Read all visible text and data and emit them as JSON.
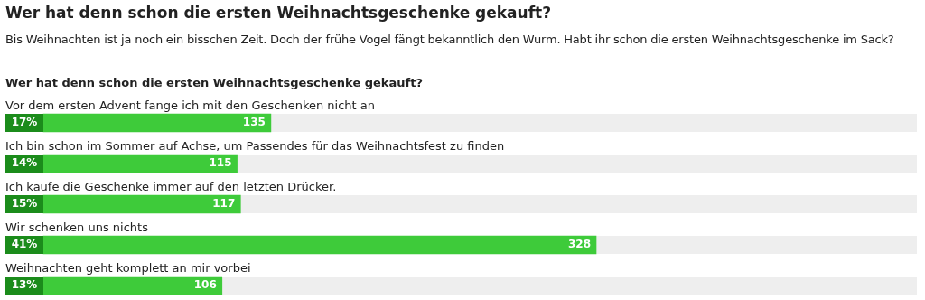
{
  "chart_data": {
    "type": "bar",
    "orientation": "horizontal",
    "title": "Wer hat denn schon die ersten Weihnachtsgeschenke gekauft?",
    "subtitle": "Bis Weihnachten ist ja noch ein bisschen Zeit. Doch der frühe Vogel fängt bekanntlich den Wurm. Habt ihr schon die ersten Weihnachtsgeschenke im Sack?",
    "annotations": [
      "Wer hat denn schon die ersten Weihnachtsgeschenke gekauft?",
      {
        "text": "17%",
        "y": "Vor dem ersten Advent fange ich mit den Geschenken nicht an"
      },
      {
        "text": "14%",
        "y": "Ich bin schon im Sommer auf Achse, um Passendes für das Weihnachtsfest zu finden"
      },
      {
        "text": "15%",
        "y": "Ich kaufe die Geschenke immer auf den letzten Drücker."
      },
      {
        "text": "41%",
        "y": "Wir schenken uns nichts"
      },
      {
        "text": "13%",
        "y": "Weihnachten geht komplett an mir vorbei"
      }
    ],
    "categories": [
      "Vor dem ersten Advent fange ich mit den Geschenken nicht an",
      "Ich bin schon im Sommer auf Achse, um Passendes für das Weihnachtsfest zu finden",
      "Ich kaufe die Geschenke immer auf den letzten Drücker.",
      "Wir schenken uns nichts",
      "Weihnachten geht komplett an mir vorbei"
    ],
    "values": [
      135,
      115,
      117,
      328,
      106
    ],
    "data_labels": true,
    "color": "#3ecb3a",
    "tick_labels": false,
    "grid": false,
    "legend": false
  }
}
